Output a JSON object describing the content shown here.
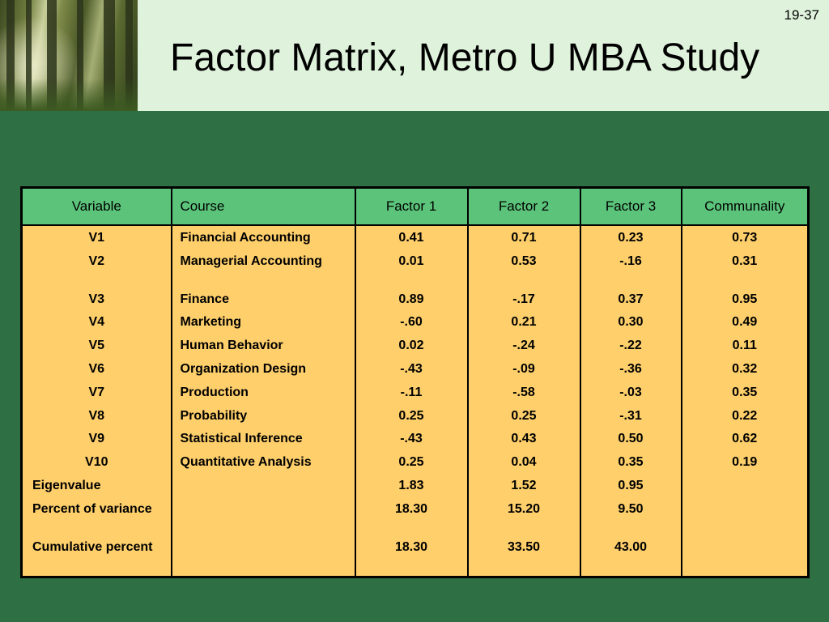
{
  "slide_number": "19-37",
  "title": "Factor Matrix, Metro U MBA Study",
  "table": {
    "headers": [
      "Variable",
      "Course",
      "Factor 1",
      "Factor 2",
      "Factor 3",
      "Communality"
    ],
    "variables": [
      "V1",
      "V2",
      "V3",
      "V4",
      "V5",
      "V6",
      "V7",
      "V8",
      "V9",
      "V10"
    ],
    "summary_labels": [
      "Eigenvalue",
      "Percent of variance",
      "Cumulative percent"
    ],
    "courses": [
      "Financial Accounting",
      "Managerial Accounting",
      "Finance",
      "Marketing",
      "Human Behavior",
      "Organization Design",
      "Production",
      "Probability",
      "Statistical Inference",
      "Quantitative Analysis"
    ],
    "factor1": [
      "0.41",
      "0.01",
      "0.89",
      "-.60",
      "0.02",
      "-.43",
      "-.11",
      "0.25",
      "-.43",
      "0.25",
      "1.83",
      "18.30",
      "18.30"
    ],
    "factor2": [
      "0.71",
      "0.53",
      "-.17",
      "0.21",
      "-.24",
      "-.09",
      "-.58",
      "0.25",
      "0.43",
      "0.04",
      "1.52",
      "15.20",
      "33.50"
    ],
    "factor3": [
      "0.23",
      "-.16",
      "0.37",
      "0.30",
      "-.22",
      "-.36",
      "-.03",
      "-.31",
      "0.50",
      "0.35",
      "0.95",
      "9.50",
      "43.00"
    ],
    "communality": [
      "0.73",
      "0.31",
      "0.95",
      "0.49",
      "0.11",
      "0.32",
      "0.35",
      "0.22",
      "0.62",
      "0.19"
    ]
  }
}
